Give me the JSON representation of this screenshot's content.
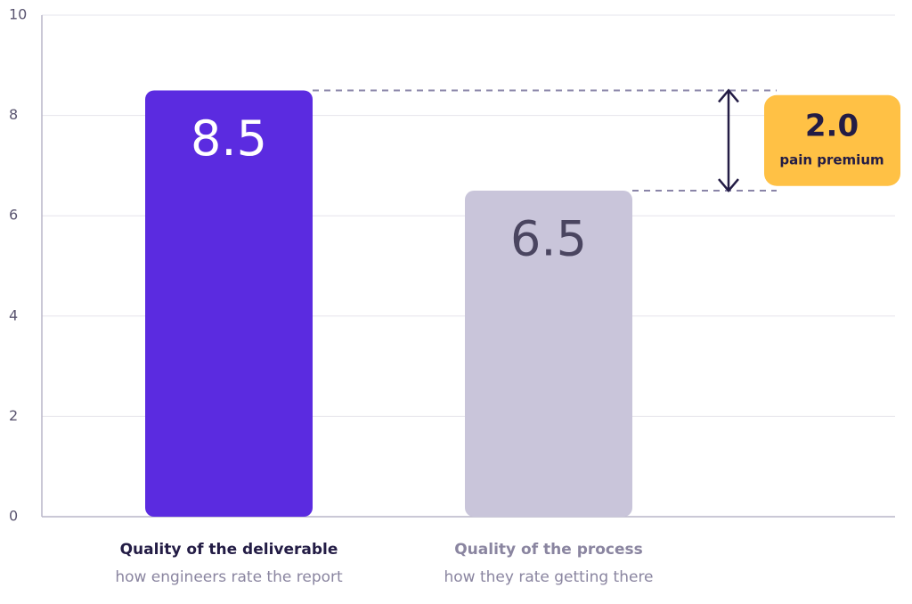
{
  "chart_data": {
    "type": "bar",
    "categories": [
      "Quality of the deliverable",
      "Quality of the process"
    ],
    "category_subtitles": [
      "how engineers rate the report",
      "how they rate getting there"
    ],
    "values": [
      8.5,
      6.5
    ],
    "colors": [
      "#5b2be0",
      "#c9c5da"
    ],
    "value_label_colors": [
      "#ffffff",
      "#4a4560"
    ],
    "category_colors": [
      "#231c45",
      "#8a85a0"
    ],
    "ylim": [
      0,
      10
    ],
    "yticks": [
      0,
      2,
      4,
      6,
      8,
      10
    ],
    "grid": true,
    "difference": {
      "value": 2,
      "value_label": "2.0",
      "label": "pain premium",
      "color": "#ffc145"
    }
  }
}
